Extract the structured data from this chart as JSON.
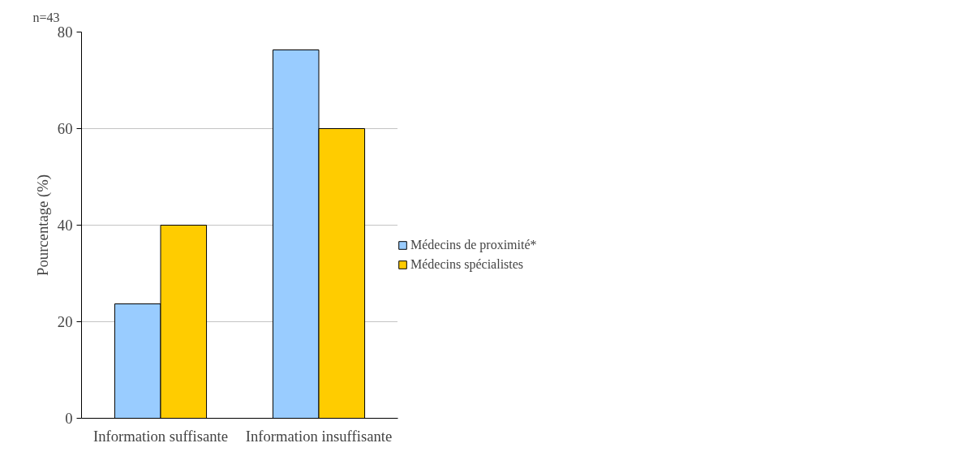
{
  "chart_data": {
    "type": "bar",
    "ylabel": "Pourcentage (%)",
    "annotations": [
      "n=43"
    ],
    "categories": [
      "Information suffisante",
      "Information insuffisante"
    ],
    "series": [
      {
        "name": "Médecins de proximité*",
        "color": "#99ccff",
        "values": [
          23.7,
          76.3
        ]
      },
      {
        "name": "Médecins spécialistes",
        "color": "#ffcc00",
        "values": [
          40,
          60
        ]
      }
    ],
    "ylim": [
      0,
      80
    ],
    "yticks": [
      0,
      20,
      40,
      60,
      80
    ],
    "grid": "y",
    "legend": "right"
  }
}
